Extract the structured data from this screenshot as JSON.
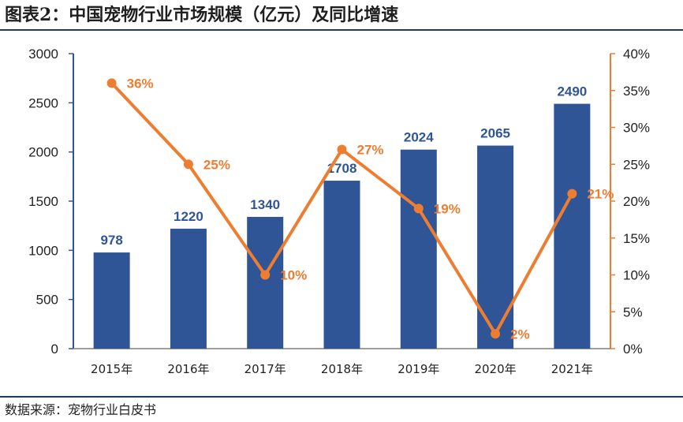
{
  "figure": {
    "title": "图表2：中国宠物行业市场规模（亿元）及同比增速",
    "source": "数据来源：宠物行业白皮书"
  },
  "colors": {
    "bar": "#2f5597",
    "line": "#ed7d31",
    "axis_left": "#2f5597",
    "axis_right": "#ed7d31",
    "rule": "#1f3864"
  },
  "chart_data": {
    "type": "bar",
    "categories": [
      "2015年",
      "2016年",
      "2017年",
      "2018年",
      "2019年",
      "2020年",
      "2021年"
    ],
    "series": [
      {
        "name": "市场规模（亿元）",
        "type": "bar",
        "axis": "left",
        "values": [
          978,
          1220,
          1340,
          1708,
          2024,
          2065,
          2490
        ],
        "labels": [
          "978",
          "1220",
          "1340",
          "1708",
          "2024",
          "2065",
          "2490"
        ]
      },
      {
        "name": "同比增速",
        "type": "line",
        "axis": "right",
        "values": [
          36,
          25,
          10,
          27,
          19,
          2,
          21
        ],
        "labels": [
          "36%",
          "25%",
          "10%",
          "27%",
          "19%",
          "2%",
          "21%"
        ]
      }
    ],
    "ylim_left": [
      0,
      3000
    ],
    "yticks_left": [
      "0",
      "500",
      "1000",
      "1500",
      "2000",
      "2500",
      "3000"
    ],
    "ylim_right": [
      0,
      40
    ],
    "yticks_right": [
      "0%",
      "5%",
      "10%",
      "15%",
      "20%",
      "25%",
      "30%",
      "35%",
      "40%"
    ],
    "legend": "none",
    "grid": false
  }
}
